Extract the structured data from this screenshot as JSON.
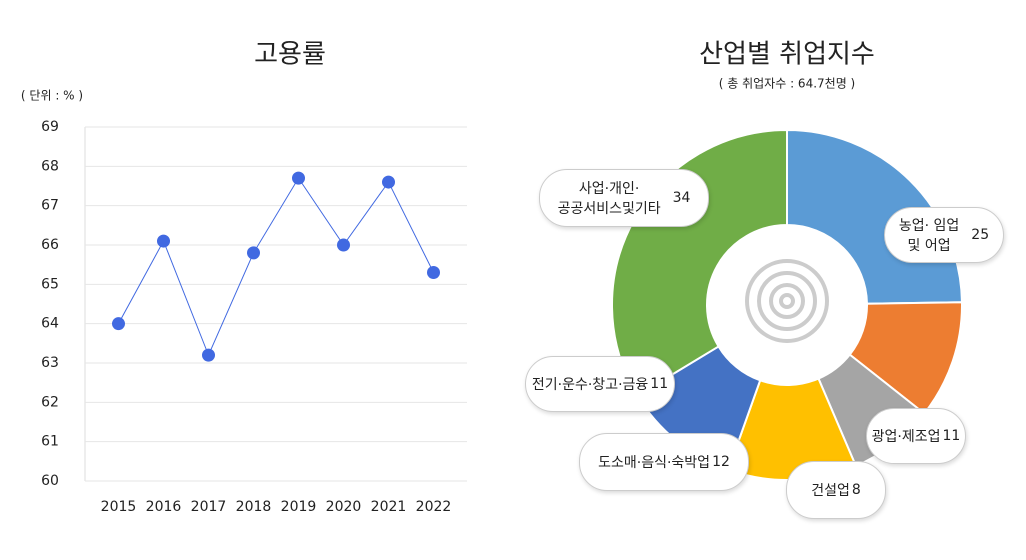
{
  "chart_data": [
    {
      "type": "line",
      "title": "고용률",
      "subtitle": "( 단위 : % )",
      "categories": [
        "2015",
        "2016",
        "2017",
        "2018",
        "2019",
        "2020",
        "2021",
        "2022"
      ],
      "values": [
        64.0,
        66.1,
        63.2,
        65.8,
        67.7,
        66.0,
        67.6,
        65.3
      ],
      "color": "#4169e1",
      "ylim": [
        60,
        69
      ],
      "yticks": [
        60,
        61,
        62,
        63,
        64,
        65,
        66,
        67,
        68,
        69
      ],
      "grid": true
    },
    {
      "type": "donut",
      "title": "산업별 취업지수",
      "subtitle": "( 총 취업자수 : 64.7천명 )",
      "categories": [
        "농업· 임업\n및 어업",
        "광업·제조업",
        "건설업",
        "도소매·음식·숙박업",
        "전기·운수·창고·금융",
        "사업·개인·\n공공서비스및기타"
      ],
      "values": [
        25,
        11,
        8,
        12,
        11,
        34
      ],
      "colors": [
        "#5b9bd5",
        "#ed7d31",
        "#a5a5a5",
        "#ffc000",
        "#4472c4",
        "#70ad47"
      ]
    }
  ]
}
